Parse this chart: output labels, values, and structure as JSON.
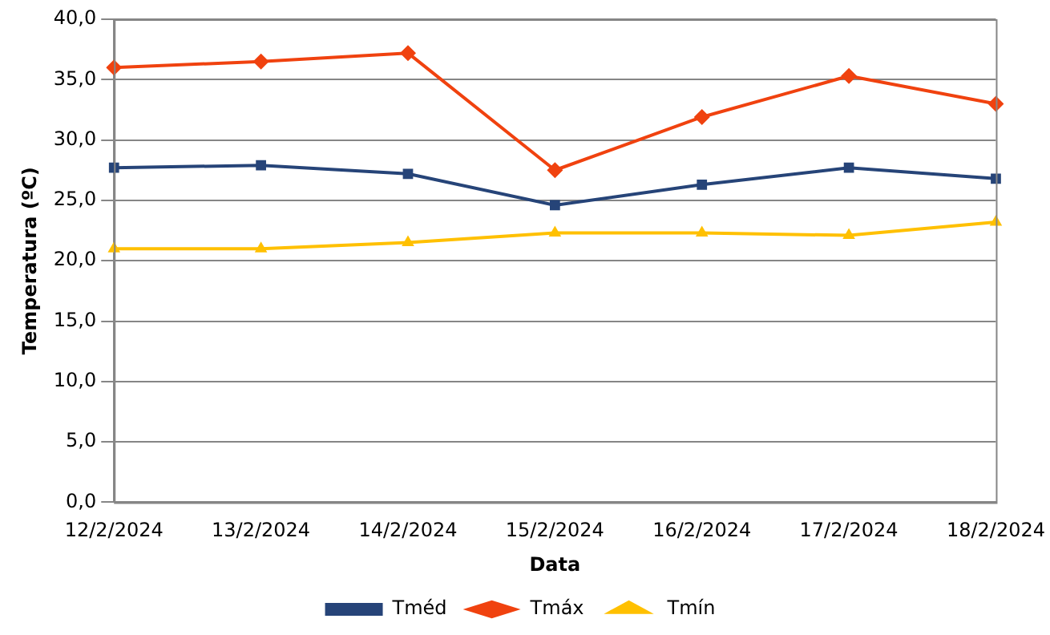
{
  "chart_data": {
    "type": "line",
    "xlabel": "Data",
    "ylabel": "Temperatura (ºC)",
    "categories": [
      "12/2/2024",
      "13/2/2024",
      "14/2/2024",
      "15/2/2024",
      "16/2/2024",
      "17/2/2024",
      "18/2/2024"
    ],
    "series": [
      {
        "name": "Tméd",
        "color": "#264478",
        "marker": "square",
        "values": [
          27.7,
          27.9,
          27.2,
          24.6,
          26.3,
          27.7,
          26.8
        ]
      },
      {
        "name": "Tmáx",
        "color": "#f0420f",
        "marker": "diamond",
        "values": [
          36.0,
          36.5,
          37.2,
          27.5,
          31.9,
          35.3,
          33.0
        ]
      },
      {
        "name": "Tmín",
        "color": "#ffc000",
        "marker": "triangle",
        "values": [
          21.0,
          21.0,
          21.5,
          22.3,
          22.3,
          22.1,
          23.2
        ]
      }
    ],
    "ylim": [
      0,
      40
    ],
    "yticks": [
      {
        "value": 0,
        "label": "0,0"
      },
      {
        "value": 5,
        "label": "5,0"
      },
      {
        "value": 10,
        "label": "10,0"
      },
      {
        "value": 15,
        "label": "15,0"
      },
      {
        "value": 20,
        "label": "20,0"
      },
      {
        "value": 25,
        "label": "25,0"
      },
      {
        "value": 30,
        "label": "30,0"
      },
      {
        "value": 35,
        "label": "35,0"
      },
      {
        "value": 40,
        "label": "40,0"
      }
    ],
    "grid": "y",
    "legend": "bottom",
    "line_style": "solid"
  }
}
